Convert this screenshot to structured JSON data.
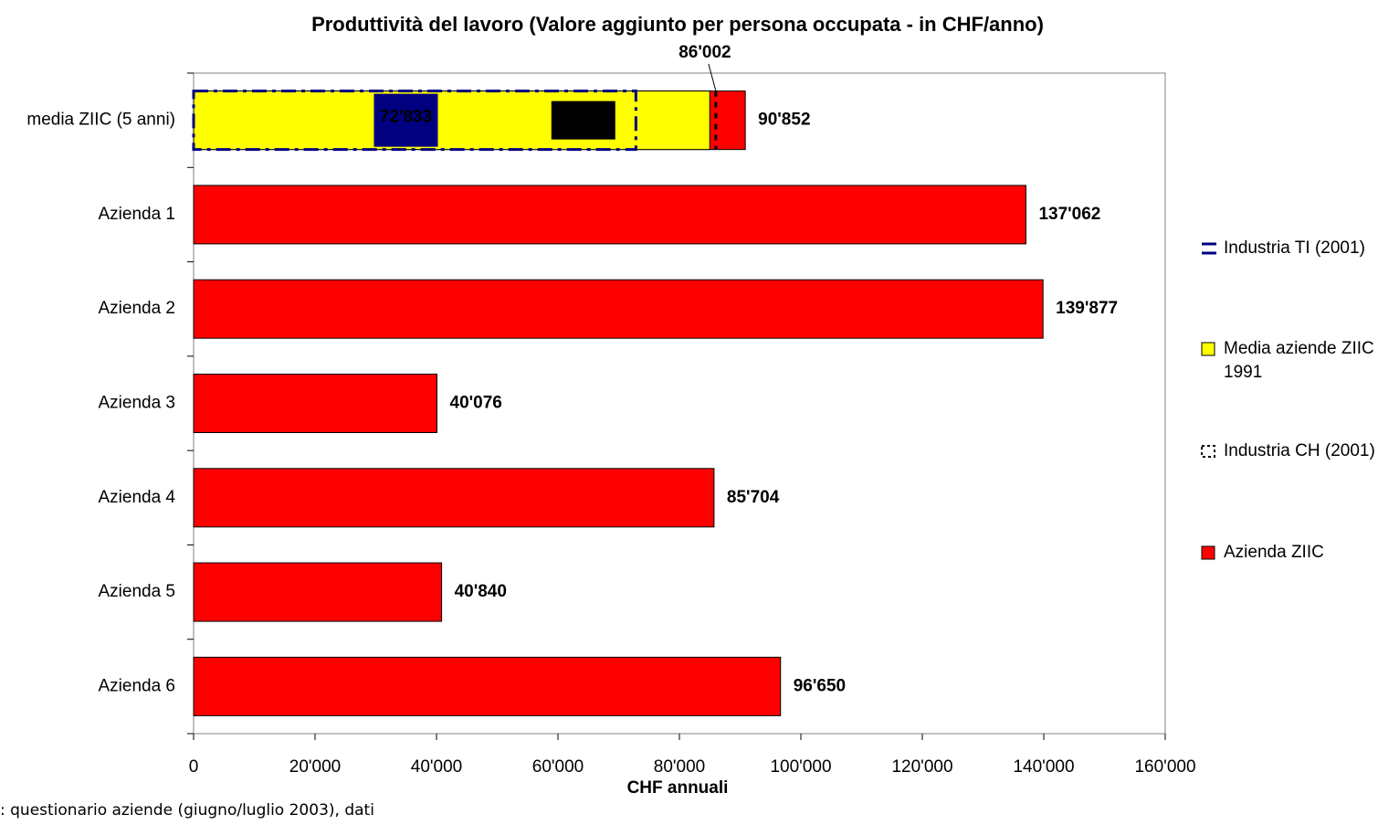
{
  "chart_data": {
    "type": "bar",
    "orientation": "horizontal",
    "title": "Produttività del lavoro (Valore aggiunto per persona occupata - in CHF/anno)",
    "x_label": "CHF annuali",
    "note": ": questionario aziende (giugno/luglio 2003), dati",
    "categories": [
      "media ZIIC (5 anni)",
      "Azienda 1",
      "Azienda 2",
      "Azienda 3",
      "Azienda 4",
      "Azienda 5",
      "Azienda 6"
    ],
    "series": [
      {
        "name": "Industria TI (2001)",
        "color": "#000080",
        "style": "dashed-box",
        "values": [
          72833,
          null,
          null,
          null,
          null,
          null,
          null
        ],
        "value_labels": [
          "72'833",
          null,
          null,
          null,
          null,
          null,
          null
        ]
      },
      {
        "name": "Media aziende ZIIC 1991",
        "color": "#ffff00",
        "style": "bar",
        "values": [
          85000,
          null,
          null,
          null,
          null,
          null,
          null
        ],
        "value_labels": [
          "85'000",
          null,
          null,
          null,
          null,
          null,
          null
        ]
      },
      {
        "name": "Industria CH (2001)",
        "color": "#000000",
        "style": "dotted-line",
        "values": [
          86002,
          null,
          null,
          null,
          null,
          null,
          null
        ],
        "value_labels": [
          "86'002",
          null,
          null,
          null,
          null,
          null,
          null
        ]
      },
      {
        "name": "Azienda ZIIC",
        "color": "#ff0000",
        "style": "bar",
        "values": [
          90852,
          137062,
          139877,
          40076,
          85704,
          40840,
          96650
        ],
        "value_labels": [
          "90'852",
          "137'062",
          "139'877",
          "40'076",
          "85'704",
          "40'840",
          "96'650"
        ]
      }
    ],
    "xlim": [
      0,
      160000
    ],
    "xticks": [
      0,
      {
        "value": 20000,
        "label": "20'000"
      },
      {
        "value": 40000,
        "label": "40'000"
      },
      {
        "value": 60000,
        "label": "60'000"
      },
      {
        "value": 80000,
        "label": "80'000"
      },
      {
        "value": 100000,
        "label": "100'000"
      },
      {
        "value": 120000,
        "label": "120'000"
      },
      {
        "value": 140000,
        "label": "140'000"
      },
      {
        "value": 160000,
        "label": "160'000"
      }
    ],
    "grid": false,
    "legend": "right"
  }
}
